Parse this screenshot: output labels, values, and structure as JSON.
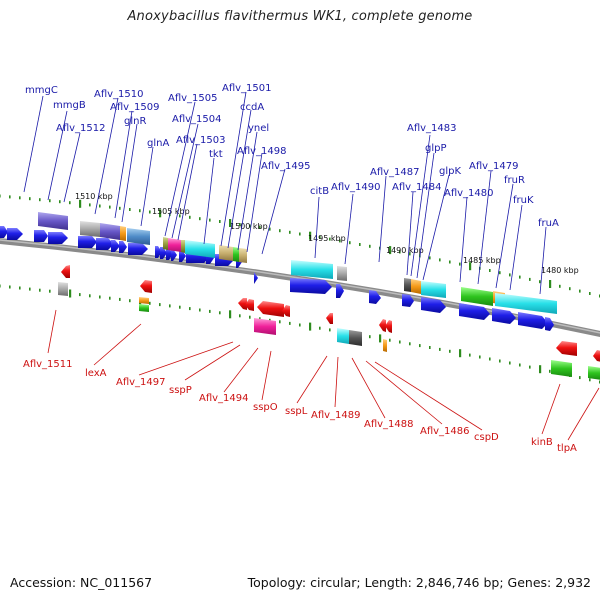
{
  "title": "Anoxybacillus flavithermus WK1, complete genome",
  "accession": "Accession: NC_011567",
  "topology": "Topology: circular; Length: 2,846,746 bp; Genes: 2,932",
  "colors": {
    "top_label": "#1a1aa8",
    "bottom_label": "#cc1111",
    "backbone": "#8a8a8a",
    "ruler_tick": "#2e8b1e",
    "forward_gene": "#1e1ee6",
    "reverse_gene": "#ee1111"
  },
  "ruler": [
    "1510 kbp",
    "1505 kbp",
    "1500 kbp",
    "1495 kbp",
    "1490 kbp",
    "1485 kbp",
    "1480 kbp"
  ],
  "top_labels": [
    "mmgC",
    "mmgB",
    "Aflv_1512",
    "Aflv_1510",
    "Aflv_1509",
    "glnR",
    "glnA",
    "Aflv_1505",
    "Aflv_1504",
    "Aflv_1503",
    "tkt",
    "Aflv_1501",
    "ccdA",
    "ynel",
    "Aflv_1498",
    "Aflv_1495",
    "citB",
    "Aflv_1490",
    "Aflv_1487",
    "Aflv_1484",
    "Aflv_1483",
    "glpP",
    "glpK",
    "Aflv_1480",
    "Aflv_1479",
    "fruR",
    "fruK",
    "fruA"
  ],
  "bottom_labels": [
    "Aflv_1511",
    "lexA",
    "Aflv_1497",
    "sspP",
    "Aflv_1494",
    "sspO",
    "sspL",
    "Aflv_1489",
    "Aflv_1488",
    "Aflv_1486",
    "cspD",
    "kinB",
    "tlpA"
  ]
}
